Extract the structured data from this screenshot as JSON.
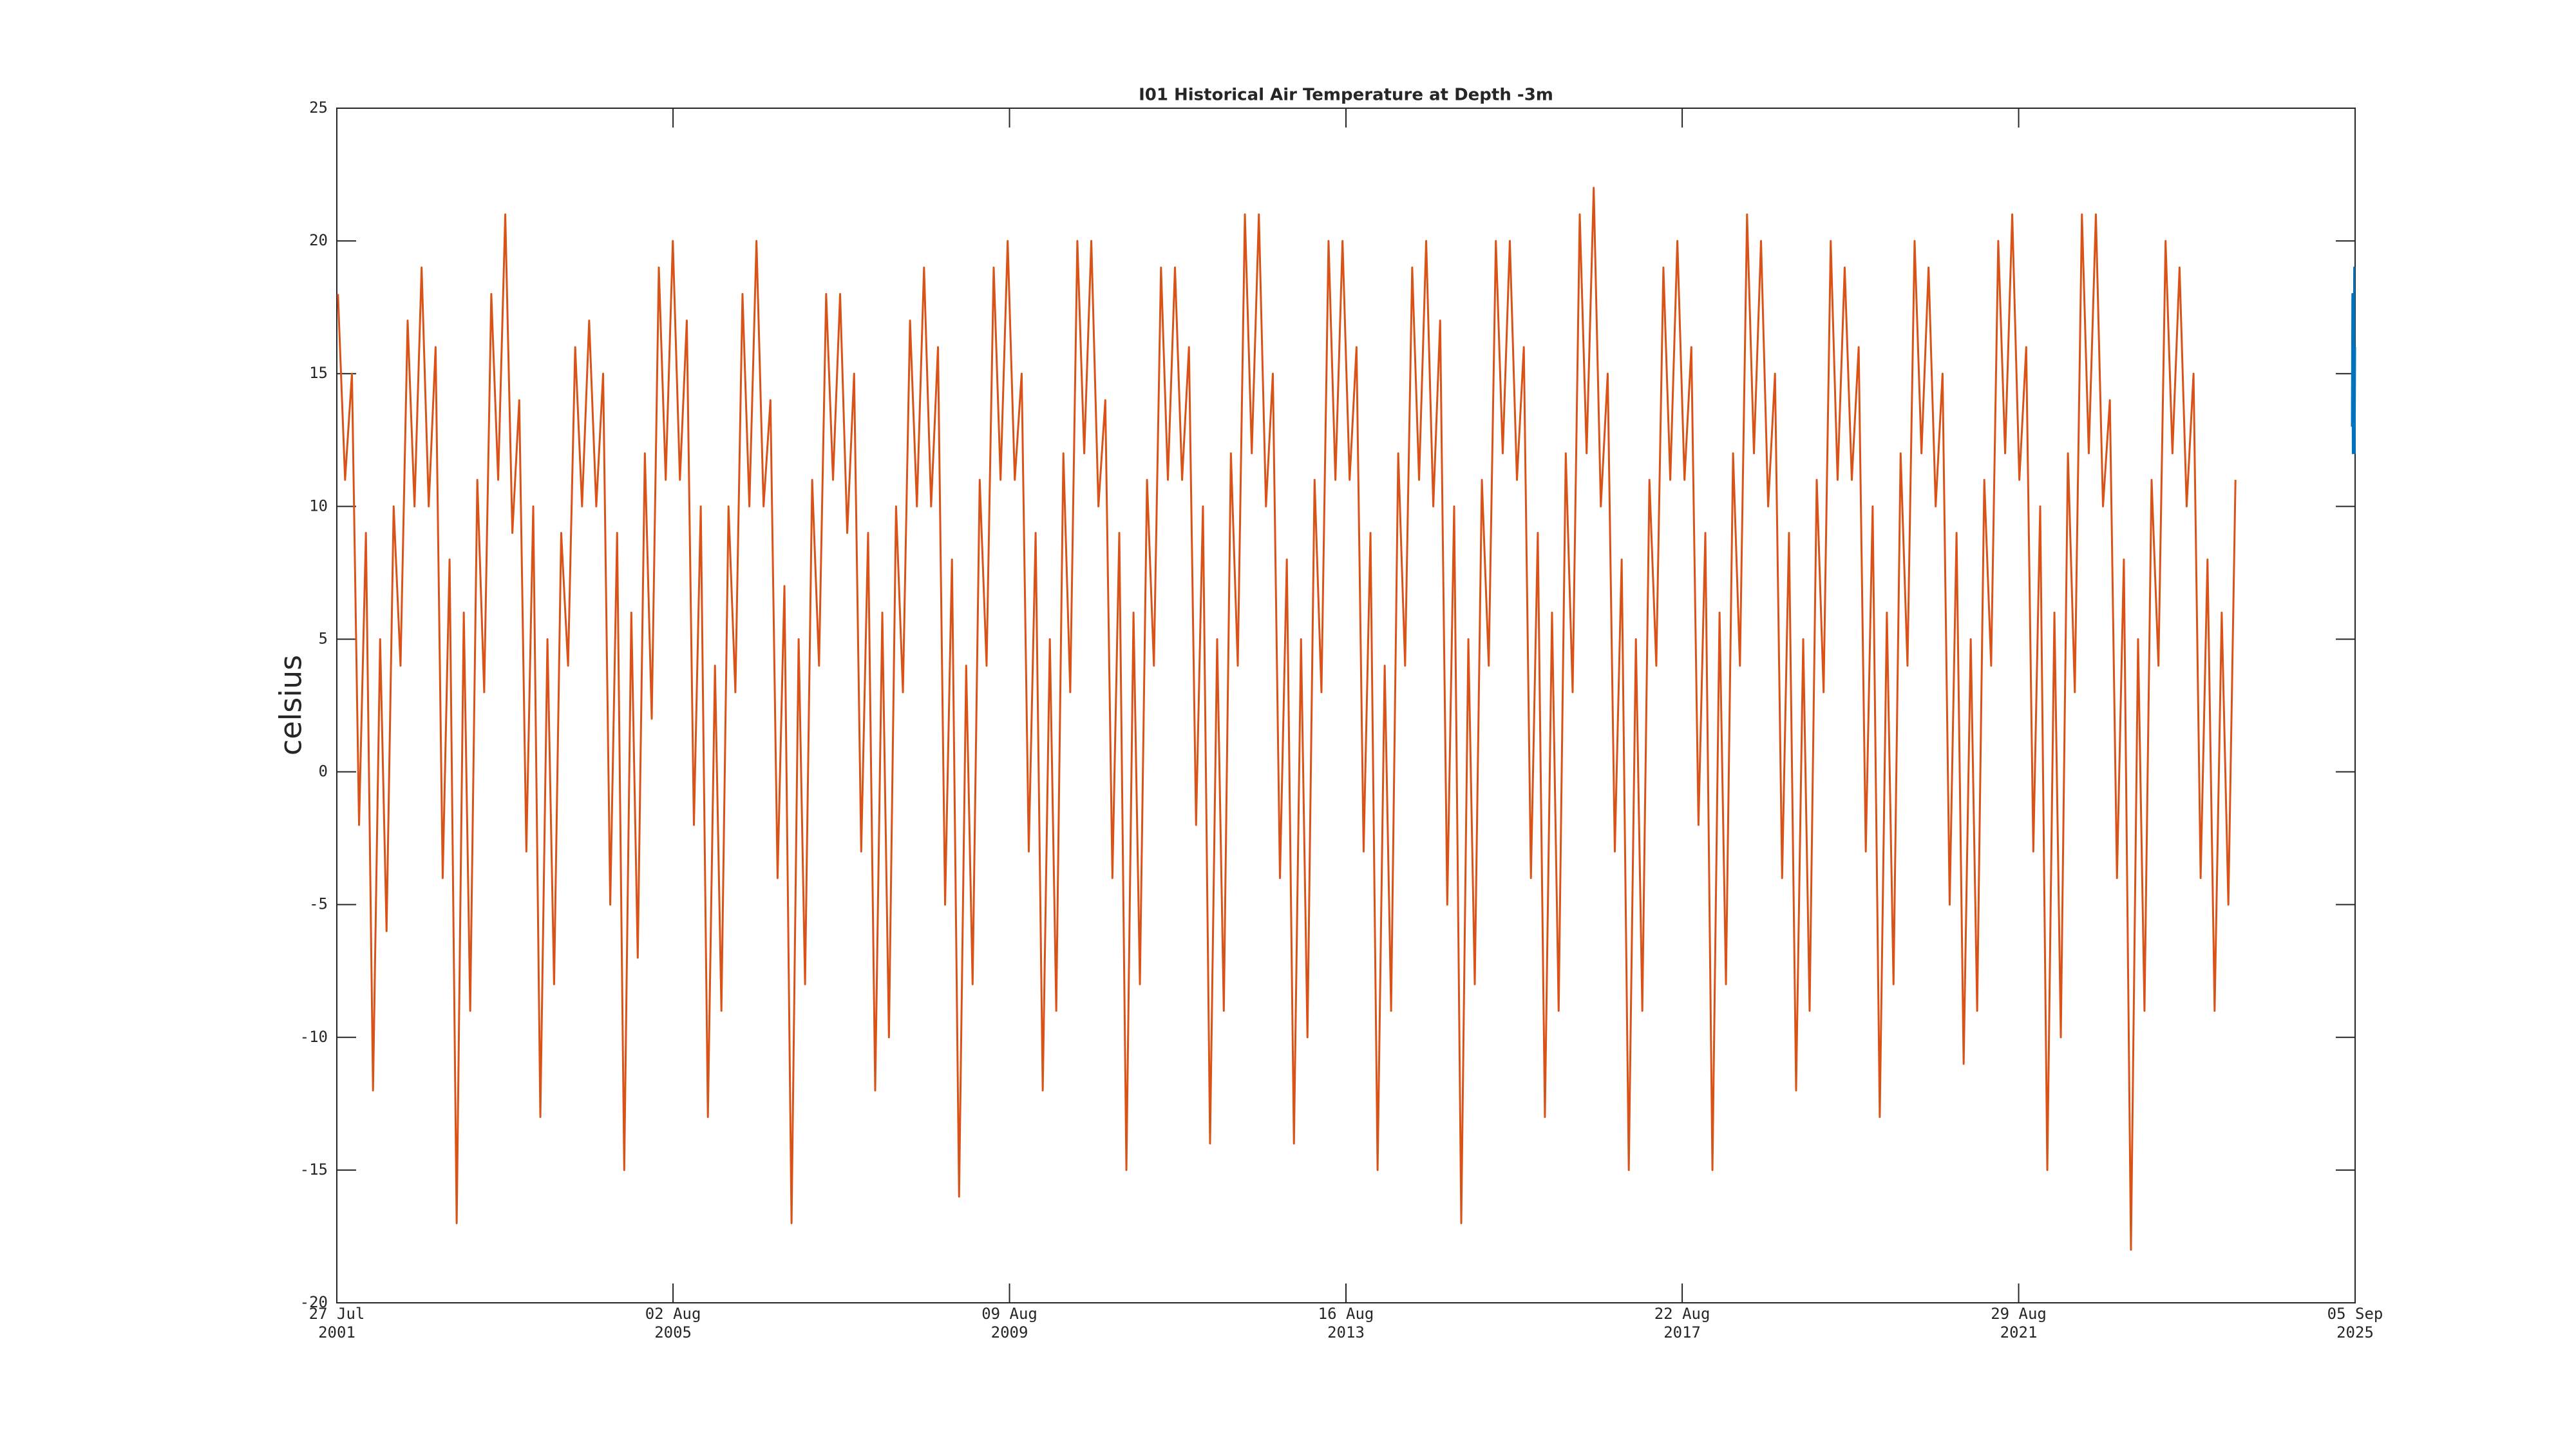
{
  "chart_data": {
    "type": "line",
    "title": "I01 Historical Air Temperature at Depth -3m",
    "ylabel": "celsius",
    "xlim": [
      "2001-07-27",
      "2025-09-05"
    ],
    "xticks": [
      {
        "value": "2001-07-27",
        "label": "27 Jul 2001"
      },
      {
        "value": "2005-08-02",
        "label": "02 Aug 2005"
      },
      {
        "value": "2009-08-09",
        "label": "09 Aug 2009"
      },
      {
        "value": "2013-08-16",
        "label": "16 Aug 2013"
      },
      {
        "value": "2017-08-22",
        "label": "22 Aug 2017"
      },
      {
        "value": "2021-08-29",
        "label": "29 Aug 2021"
      },
      {
        "value": "2025-09-05",
        "label": "05 Sep 2025"
      }
    ],
    "ylim": [
      -20,
      25
    ],
    "yticks": [
      -20,
      -15,
      -10,
      -5,
      0,
      5,
      10,
      15,
      20,
      25
    ],
    "grid": false,
    "series": [
      {
        "color": "#d95319",
        "x": [
          "2001-08-01",
          "2001-09-01",
          "2001-10-01",
          "2001-11-01",
          "2001-12-01",
          "2002-01-01",
          "2002-02-01",
          "2002-03-01",
          "2002-04-01",
          "2002-05-01",
          "2002-06-01",
          "2002-07-01",
          "2002-08-01",
          "2002-09-01",
          "2002-10-01",
          "2002-11-01",
          "2002-12-01",
          "2003-01-01",
          "2003-02-01",
          "2003-03-01",
          "2003-04-01",
          "2003-05-01",
          "2003-06-01",
          "2003-07-01",
          "2003-08-01",
          "2003-09-01",
          "2003-10-01",
          "2003-11-01",
          "2003-12-01",
          "2004-01-01",
          "2004-02-01",
          "2004-03-01",
          "2004-04-01",
          "2004-05-01",
          "2004-06-01",
          "2004-07-01",
          "2004-08-01",
          "2004-09-01",
          "2004-10-01",
          "2004-11-01",
          "2004-12-01",
          "2005-01-01",
          "2005-02-01",
          "2005-03-01",
          "2005-04-01",
          "2005-05-01",
          "2005-06-01",
          "2005-07-01",
          "2005-08-01",
          "2005-09-01",
          "2005-10-01",
          "2005-11-01",
          "2005-12-01",
          "2006-01-01",
          "2006-02-01",
          "2006-03-01",
          "2006-04-01",
          "2006-05-01",
          "2006-06-01",
          "2006-07-01",
          "2006-08-01",
          "2006-09-01",
          "2006-10-01",
          "2006-11-01",
          "2006-12-01",
          "2007-01-01",
          "2007-02-01",
          "2007-03-01",
          "2007-04-01",
          "2007-05-01",
          "2007-06-01",
          "2007-07-01",
          "2007-08-01",
          "2007-09-01",
          "2007-10-01",
          "2007-11-01",
          "2007-12-01",
          "2008-01-01",
          "2008-02-01",
          "2008-03-01",
          "2008-04-01",
          "2008-05-01",
          "2008-06-01",
          "2008-07-01",
          "2008-08-01",
          "2008-09-01",
          "2008-10-01",
          "2008-11-01",
          "2008-12-01",
          "2009-01-01",
          "2009-02-01",
          "2009-03-01",
          "2009-04-01",
          "2009-05-01",
          "2009-06-01",
          "2009-07-01",
          "2009-08-01",
          "2009-09-01",
          "2009-10-01",
          "2009-11-01",
          "2009-12-01",
          "2010-01-01",
          "2010-02-01",
          "2010-03-01",
          "2010-04-01",
          "2010-05-01",
          "2010-06-01",
          "2010-07-01",
          "2010-08-01",
          "2010-09-01",
          "2010-10-01",
          "2010-11-01",
          "2010-12-01",
          "2011-01-01",
          "2011-02-01",
          "2011-03-01",
          "2011-04-01",
          "2011-05-01",
          "2011-06-01",
          "2011-07-01",
          "2011-08-01",
          "2011-09-01",
          "2011-10-01",
          "2011-11-01",
          "2011-12-01",
          "2012-01-01",
          "2012-02-01",
          "2012-03-01",
          "2012-04-01",
          "2012-05-01",
          "2012-06-01",
          "2012-07-01",
          "2012-08-01",
          "2012-09-01",
          "2012-10-01",
          "2012-11-01",
          "2012-12-01",
          "2013-01-01",
          "2013-02-01",
          "2013-03-01",
          "2013-04-01",
          "2013-05-01",
          "2013-06-01",
          "2013-07-01",
          "2013-08-01",
          "2013-09-01",
          "2013-10-01",
          "2013-11-01",
          "2013-12-01",
          "2014-01-01",
          "2014-02-01",
          "2014-03-01",
          "2014-04-01",
          "2014-05-01",
          "2014-06-01",
          "2014-07-01",
          "2014-08-01",
          "2014-09-01",
          "2014-10-01",
          "2014-11-01",
          "2014-12-01",
          "2015-01-01",
          "2015-02-01",
          "2015-03-01",
          "2015-04-01",
          "2015-05-01",
          "2015-06-01",
          "2015-07-01",
          "2015-08-01",
          "2015-09-01",
          "2015-10-01",
          "2015-11-01",
          "2015-12-01",
          "2016-01-01",
          "2016-02-01",
          "2016-03-01",
          "2016-04-01",
          "2016-05-01",
          "2016-06-01",
          "2016-07-01",
          "2016-08-01",
          "2016-09-01",
          "2016-10-01",
          "2016-11-01",
          "2016-12-01",
          "2017-01-01",
          "2017-02-01",
          "2017-03-01",
          "2017-04-01",
          "2017-05-01",
          "2017-06-01",
          "2017-07-01",
          "2017-08-01",
          "2017-09-01",
          "2017-10-01",
          "2017-11-01",
          "2017-12-01",
          "2018-01-01",
          "2018-02-01",
          "2018-03-01",
          "2018-04-01",
          "2018-05-01",
          "2018-06-01",
          "2018-07-01",
          "2018-08-01",
          "2018-09-01",
          "2018-10-01",
          "2018-11-01",
          "2018-12-01",
          "2019-01-01",
          "2019-02-01",
          "2019-03-01",
          "2019-04-01",
          "2019-05-01",
          "2019-06-01",
          "2019-07-01",
          "2019-08-01",
          "2019-09-01",
          "2019-10-01",
          "2019-11-01",
          "2019-12-01",
          "2020-01-01",
          "2020-02-01",
          "2020-03-01",
          "2020-04-01",
          "2020-05-01",
          "2020-06-01",
          "2020-07-01",
          "2020-08-01",
          "2020-09-01",
          "2020-10-01",
          "2020-11-01",
          "2020-12-01",
          "2021-01-01",
          "2021-02-01",
          "2021-03-01",
          "2021-04-01",
          "2021-05-01",
          "2021-06-01",
          "2021-07-01",
          "2021-08-01",
          "2021-09-01",
          "2021-10-01",
          "2021-11-01",
          "2021-12-01",
          "2022-01-01",
          "2022-02-01",
          "2022-03-01",
          "2022-04-01",
          "2022-05-01",
          "2022-06-01",
          "2022-07-01",
          "2022-08-01",
          "2022-09-01",
          "2022-10-01",
          "2022-11-01",
          "2022-12-01",
          "2023-01-01",
          "2023-02-01",
          "2023-03-01",
          "2023-04-01",
          "2023-05-01",
          "2023-06-01",
          "2023-07-01",
          "2023-08-01",
          "2023-09-01",
          "2023-10-01",
          "2023-11-01",
          "2023-12-01",
          "2024-01-01",
          "2024-02-01",
          "2024-03-01",
          "2024-04-01"
        ],
        "values": [
          18,
          11,
          15,
          -2,
          9,
          -12,
          5,
          -6,
          10,
          4,
          17,
          10,
          19,
          10,
          16,
          -4,
          8,
          -17,
          6,
          -9,
          11,
          3,
          18,
          11,
          21,
          9,
          14,
          -3,
          10,
          -13,
          5,
          -8,
          9,
          4,
          16,
          10,
          17,
          10,
          15,
          -5,
          9,
          -15,
          6,
          -7,
          12,
          2,
          19,
          11,
          20,
          11,
          17,
          -2,
          10,
          -13,
          4,
          -9,
          10,
          3,
          18,
          10,
          20,
          10,
          14,
          -4,
          7,
          -17,
          5,
          -8,
          11,
          4,
          18,
          11,
          18,
          9,
          15,
          -3,
          9,
          -12,
          6,
          -10,
          10,
          3,
          17,
          10,
          19,
          10,
          16,
          -5,
          8,
          -16,
          4,
          -8,
          11,
          4,
          19,
          11,
          20,
          11,
          15,
          -3,
          9,
          -12,
          5,
          -9,
          12,
          3,
          20,
          12,
          20,
          10,
          14,
          -4,
          9,
          -15,
          6,
          -8,
          11,
          4,
          19,
          11,
          19,
          11,
          16,
          -2,
          10,
          -14,
          5,
          -9,
          12,
          4,
          21,
          12,
          21,
          10,
          15,
          -4,
          8,
          -14,
          5,
          -10,
          11,
          3,
          20,
          11,
          20,
          11,
          16,
          -3,
          9,
          -15,
          4,
          -9,
          12,
          4,
          19,
          11,
          20,
          10,
          17,
          -5,
          10,
          -17,
          5,
          -8,
          11,
          4,
          20,
          12,
          20,
          11,
          16,
          -4,
          9,
          -13,
          6,
          -9,
          12,
          3,
          21,
          12,
          22,
          10,
          15,
          -3,
          8,
          -15,
          5,
          -9,
          11,
          4,
          19,
          11,
          20,
          11,
          16,
          -2,
          9,
          -15,
          6,
          -8,
          12,
          4,
          21,
          12,
          20,
          10,
          15,
          -4,
          9,
          -12,
          5,
          -9,
          11,
          3,
          20,
          11,
          19,
          11,
          16,
          -3,
          10,
          -13,
          6,
          -8,
          12,
          4,
          20,
          12,
          19,
          10,
          15,
          -5,
          9,
          -11,
          5,
          -9,
          11,
          4,
          20,
          12,
          21,
          11,
          16,
          -3,
          10,
          -15,
          6,
          -10,
          12,
          3,
          21,
          12,
          21,
          10,
          14,
          -4,
          8,
          -18,
          5,
          -9,
          11,
          4,
          20,
          12,
          19,
          10,
          15,
          -4,
          8,
          -9,
          6,
          -5,
          11
        ]
      },
      {
        "color": "#0072bd",
        "x": [
          "2025-08-22",
          "2025-08-24",
          "2025-08-26",
          "2025-08-28",
          "2025-08-30",
          "2025-09-01",
          "2025-09-03",
          "2025-09-05"
        ],
        "values": [
          13,
          18,
          12,
          17,
          14,
          19,
          12,
          16
        ]
      }
    ]
  }
}
